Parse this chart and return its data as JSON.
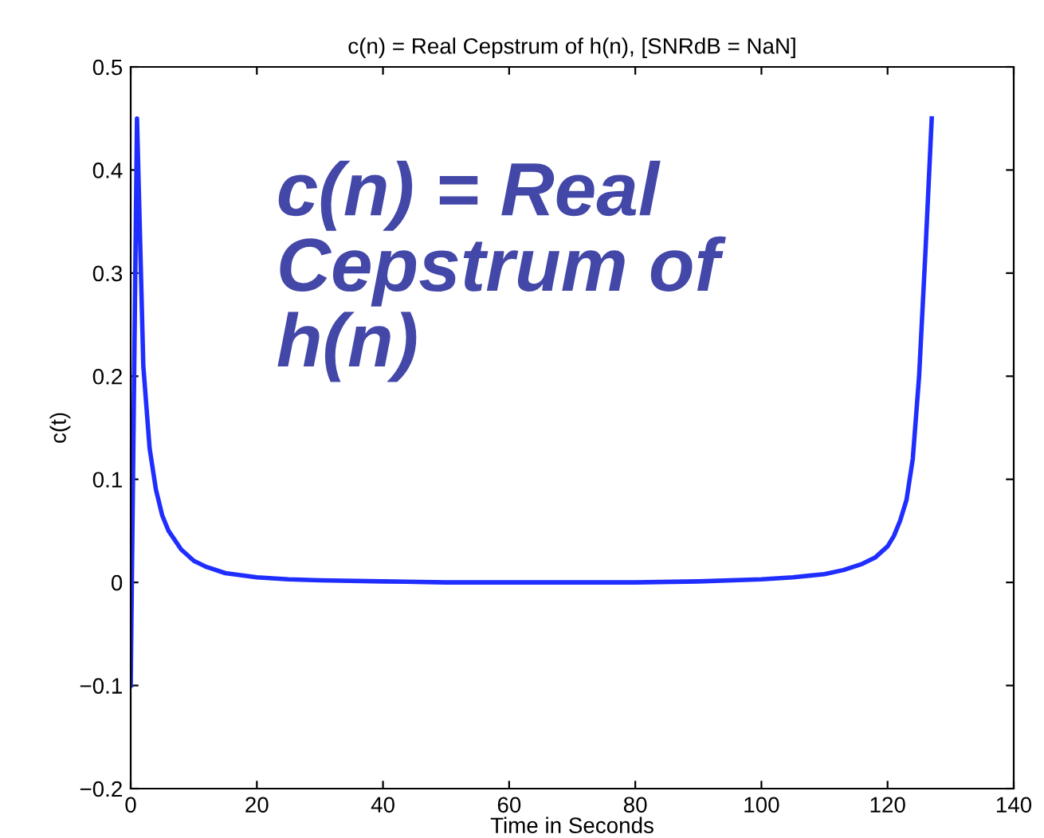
{
  "chart_data": {
    "type": "line",
    "title": "c(n) = Real Cepstrum of h(n), [SNRdB = NaN]",
    "xlabel": "Time in Seconds",
    "ylabel": "c(t)",
    "x": [
      0,
      1,
      2,
      3,
      4,
      5,
      6,
      8,
      10,
      12,
      15,
      20,
      25,
      30,
      40,
      50,
      60,
      70,
      80,
      90,
      100,
      105,
      110,
      113,
      116,
      118,
      120,
      121,
      122,
      123,
      124,
      125,
      126,
      127
    ],
    "series": [
      {
        "color": "#1f2eff",
        "values": [
          -0.1,
          0.45,
          0.21,
          0.13,
          0.09,
          0.065,
          0.05,
          0.032,
          0.021,
          0.015,
          0.009,
          0.005,
          0.003,
          0.002,
          0.001,
          0.0,
          0.0,
          0.0,
          0.0,
          0.001,
          0.003,
          0.005,
          0.008,
          0.012,
          0.018,
          0.024,
          0.035,
          0.045,
          0.06,
          0.08,
          0.12,
          0.2,
          0.32,
          0.45
        ]
      }
    ],
    "annotations": [
      "c(n) = Real\nCepstrum of\nh(n)"
    ],
    "xlim": [
      0,
      140
    ],
    "xticks": [
      0,
      20,
      40,
      60,
      80,
      100,
      120,
      140
    ],
    "ylim": [
      -0.2,
      0.5
    ],
    "yticks": [
      {
        "value": -0.2,
        "label": "−0.2"
      },
      {
        "value": -0.1,
        "label": "−0.1"
      },
      0,
      0.1,
      0.2,
      0.3,
      0.4,
      0.5
    ],
    "grid": false,
    "legend": false
  }
}
